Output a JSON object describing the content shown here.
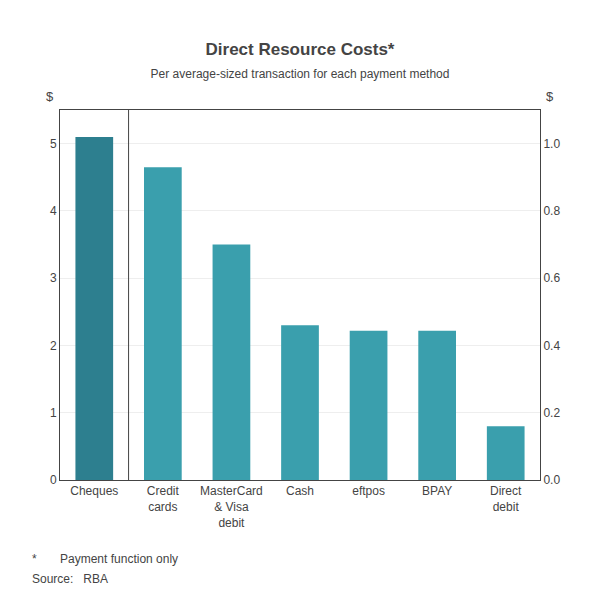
{
  "chart_data": {
    "type": "bar",
    "title": "Direct Resource Costs*",
    "subtitle": "Per average-sized transaction for each payment method",
    "categories": [
      "Cheques",
      "Credit\ncards",
      "MasterCard\n& Visa\ndebit",
      "Cash",
      "eftpos",
      "BPAY",
      "Direct\ndebit"
    ],
    "values": [
      5.1,
      4.65,
      3.5,
      2.3,
      2.22,
      2.22,
      0.8
    ],
    "colors": [
      "#2d7f8f",
      "#3a9fad",
      "#3a9fad",
      "#3a9fad",
      "#3a9fad",
      "#3a9fad",
      "#3a9fad"
    ],
    "ylim": [
      0,
      5.5
    ],
    "yticks": [
      0,
      1,
      2,
      3,
      4,
      5
    ],
    "y2lim": [
      0.0,
      1.1
    ],
    "y2ticks": [
      {
        "value": 0.0,
        "label": "0.0"
      },
      0.2,
      0.4,
      0.6,
      0.8,
      {
        "value": 1.0,
        "label": "1.0"
      }
    ],
    "annotations": [
      "$",
      "$"
    ],
    "footnotes": [
      "*       Payment function only",
      "Source:   RBA"
    ],
    "grid": true
  }
}
